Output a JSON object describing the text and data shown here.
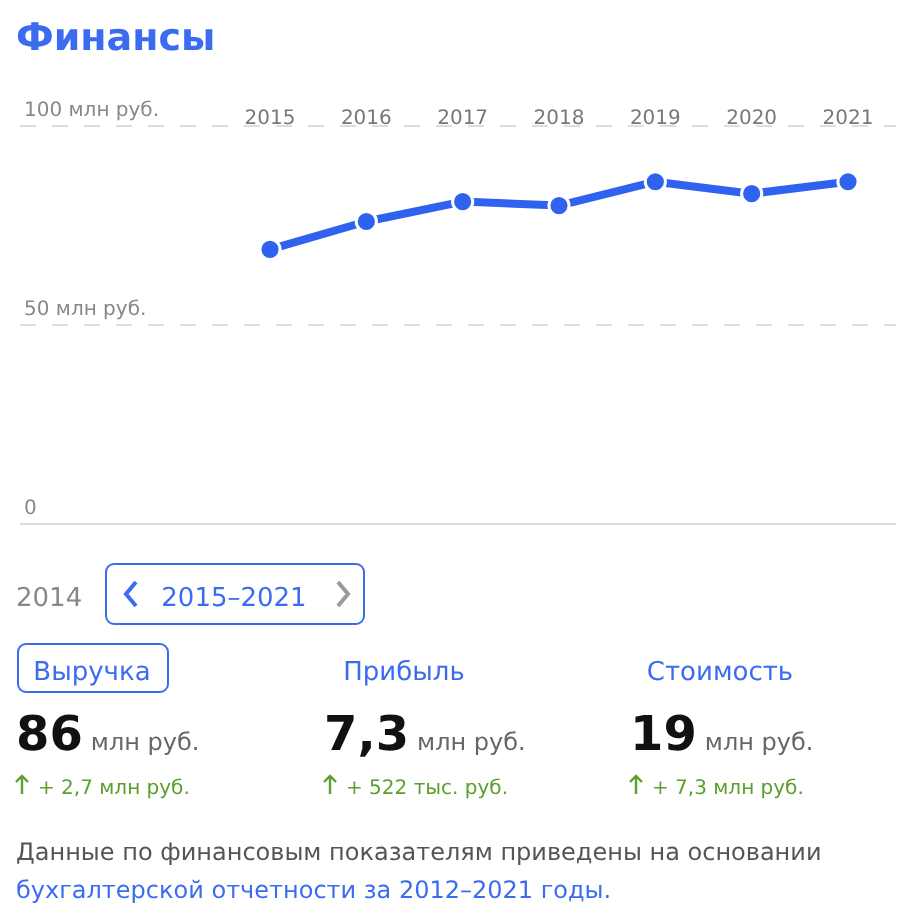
{
  "chart_data": {
    "type": "line",
    "title": "Финансы",
    "categories": [
      "2015",
      "2016",
      "2017",
      "2018",
      "2019",
      "2020",
      "2021"
    ],
    "series": [
      {
        "color": "#2f62ee",
        "values": [
          69,
          76,
          81,
          80,
          86,
          83,
          86
        ]
      }
    ],
    "ylim": [
      0,
      100
    ],
    "yticks": [
      {
        "value": 0,
        "label": "0"
      },
      {
        "value": 50,
        "label": "50 млн руб."
      },
      {
        "value": 100,
        "label": "100 млн руб."
      }
    ],
    "grid": "y",
    "marker": "circle",
    "line_style": "solid",
    "annotations": [
      "2014",
      "2015–2021",
      "Выручка",
      "Прибыль",
      "Стоимость",
      "86",
      "млн руб.",
      "7,3",
      "млн руб.",
      "19",
      "млн руб.",
      "+ 2,7 млн руб.",
      "+ 522 тыс. руб.",
      "+ 7,3 млн руб.",
      "Данные по финансовым показателям приведены на основании",
      "бухгалтерской отчетности за 2012–2021 годы."
    ]
  }
}
